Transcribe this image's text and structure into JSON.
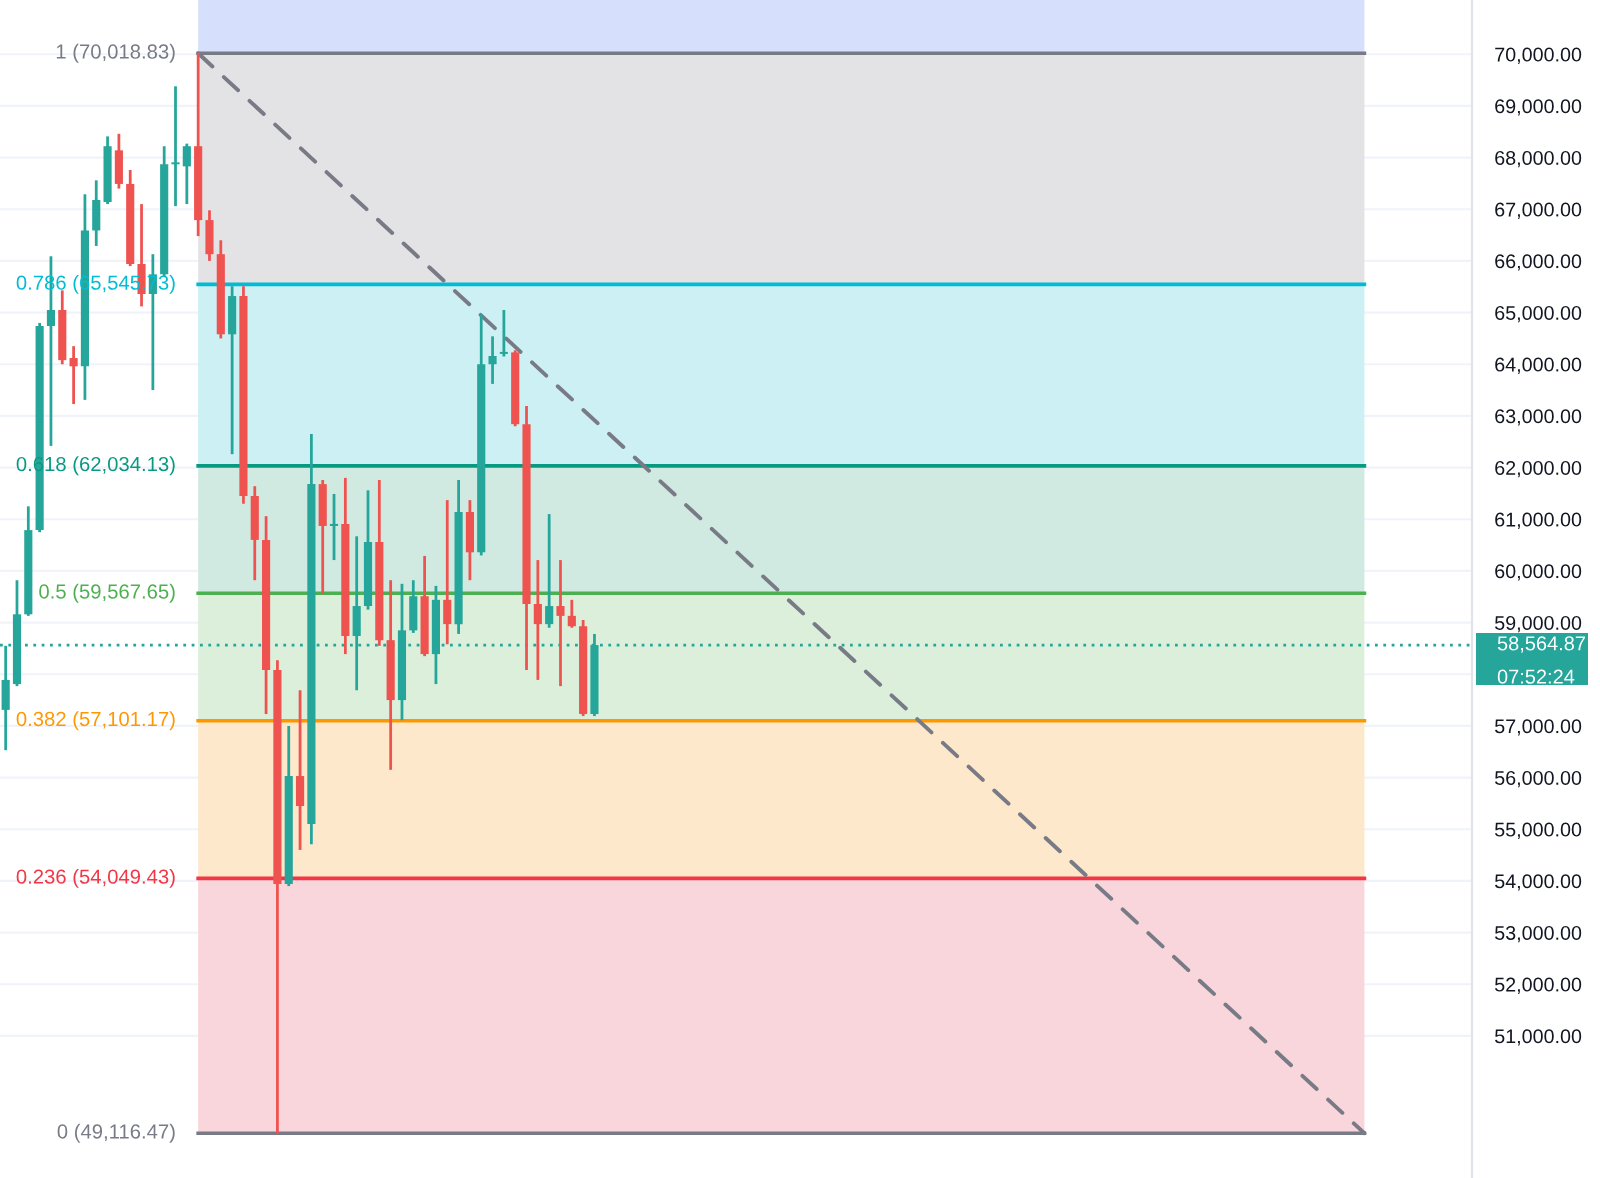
{
  "chart_data": {
    "type": "candlestick",
    "categories": [
      null,
      null,
      null,
      null,
      null,
      null,
      null,
      null,
      null,
      null,
      null,
      null,
      null,
      null,
      null,
      null,
      null,
      null,
      null,
      null,
      null,
      null,
      null,
      null,
      null,
      null,
      null,
      null,
      null,
      null,
      null,
      null,
      null,
      null,
      null,
      null,
      null,
      null,
      null,
      null,
      null,
      null,
      null,
      null,
      null,
      null,
      null,
      null,
      null,
      null,
      null,
      null,
      null,
      null,
      null,
      null,
      null,
      null,
      null,
      null,
      null,
      null,
      null,
      null,
      null,
      null,
      null,
      null,
      null,
      null,
      null,
      null,
      null,
      null,
      null,
      null,
      null,
      null,
      null,
      null,
      null,
      null,
      null,
      null,
      null,
      null,
      null,
      null,
      null,
      null,
      null,
      null,
      null,
      null,
      null,
      null,
      null,
      null,
      null,
      null,
      null,
      null,
      null,
      null,
      null,
      null,
      null,
      null,
      null,
      null,
      null,
      null,
      null,
      null,
      null,
      null,
      null,
      null,
      null,
      null,
      null,
      null,
      null,
      null,
      null,
      null,
      null,
      null,
      null,
      null
    ],
    "ohlc": [
      [
        57310,
        58550,
        56530,
        57890
      ],
      [
        57810,
        59820,
        57770,
        59160
      ],
      [
        59160,
        61250,
        59130,
        60790
      ],
      [
        60790,
        64800,
        60750,
        64740
      ],
      [
        64740,
        66090,
        62420,
        65050
      ],
      [
        65050,
        65430,
        64000,
        64080
      ],
      [
        64120,
        64350,
        63230,
        63960
      ],
      [
        63960,
        67290,
        63310,
        66590
      ],
      [
        66590,
        67560,
        66290,
        67180
      ],
      [
        67140,
        68410,
        67100,
        68220
      ],
      [
        68140,
        68460,
        67400,
        67490
      ],
      [
        67490,
        67760,
        65900,
        65940
      ],
      [
        65940,
        67100,
        65120,
        65360
      ],
      [
        65360,
        66130,
        63500,
        65740
      ],
      [
        65740,
        68220,
        65700,
        67870
      ],
      [
        67870,
        69380,
        67060,
        67900
      ],
      [
        67830,
        68270,
        67100,
        68220
      ],
      [
        68220,
        70018.83,
        66480,
        66790
      ],
      [
        66790,
        66980,
        66000,
        66130
      ],
      [
        66130,
        66400,
        64500,
        64580
      ],
      [
        64580,
        65510,
        62260,
        65320
      ],
      [
        65320,
        65510,
        61300,
        61450
      ],
      [
        61450,
        61640,
        59820,
        60600
      ],
      [
        60600,
        61060,
        57230,
        58080
      ],
      [
        58080,
        58270,
        49116.47,
        53940
      ],
      [
        53940,
        57000,
        53900,
        56030
      ],
      [
        56030,
        57690,
        54600,
        55450
      ],
      [
        55100,
        62650,
        54710,
        61680
      ],
      [
        61680,
        61760,
        59550,
        60870
      ],
      [
        60870,
        61490,
        60210,
        60910
      ],
      [
        60910,
        61800,
        58390,
        58740
      ],
      [
        58740,
        60670,
        57690,
        59320
      ],
      [
        59320,
        61560,
        59250,
        60560
      ],
      [
        60560,
        61760,
        58550,
        58660
      ],
      [
        58660,
        59820,
        56150,
        57500
      ],
      [
        57500,
        59750,
        57110,
        58850
      ],
      [
        58850,
        59820,
        58800,
        59510
      ],
      [
        59510,
        60290,
        58350,
        58390
      ],
      [
        58390,
        59710,
        57810,
        59440
      ],
      [
        59440,
        61370,
        58580,
        58970
      ],
      [
        58970,
        61760,
        58780,
        61140
      ],
      [
        61140,
        61370,
        59820,
        60360
      ],
      [
        60360,
        64970,
        60300,
        64000
      ],
      [
        64000,
        64540,
        63620,
        64160
      ],
      [
        64200,
        65050,
        64150,
        64230
      ],
      [
        64230,
        64270,
        62800,
        62840
      ],
      [
        62840,
        63190,
        58080,
        59360
      ],
      [
        59360,
        60210,
        57890,
        58970
      ],
      [
        58970,
        61100,
        58900,
        59320
      ],
      [
        59320,
        60210,
        57770,
        59130
      ],
      [
        59130,
        59440,
        58900,
        58930
      ],
      [
        58930,
        59050,
        57190,
        57230
      ],
      [
        57230,
        58780,
        57190,
        58564.87
      ],
      null,
      null,
      null,
      null,
      null,
      null,
      null,
      null,
      null,
      null,
      null,
      null,
      null,
      null,
      null,
      null,
      null,
      null,
      null,
      null,
      null,
      null,
      null,
      null,
      null,
      null,
      null,
      null,
      null,
      null,
      null,
      null,
      null,
      null,
      null,
      null,
      null,
      null,
      null,
      null,
      null,
      null,
      null,
      null,
      null,
      null,
      null,
      null,
      null,
      null,
      null,
      null,
      null,
      null,
      null,
      null,
      null,
      null,
      null,
      null,
      null,
      null,
      null,
      null,
      null,
      null,
      null,
      null,
      null,
      null,
      null,
      null,
      null,
      null,
      null,
      null,
      null
    ],
    "colors": [
      "#26a69a",
      "#26a69a",
      "#26a69a",
      "#26a69a",
      "#26a69a",
      "#ef5350",
      "#ef5350",
      "#26a69a",
      "#26a69a",
      "#26a69a",
      "#ef5350",
      "#ef5350",
      "#ef5350",
      "#26a69a",
      "#26a69a",
      "#26a69a",
      "#26a69a",
      "#ef5350",
      "#ef5350",
      "#ef5350",
      "#26a69a",
      "#ef5350",
      "#ef5350",
      "#ef5350",
      "#ef5350",
      "#26a69a",
      "#ef5350",
      "#26a69a",
      "#ef5350",
      "#26a69a",
      "#ef5350",
      "#26a69a",
      "#26a69a",
      "#ef5350",
      "#ef5350",
      "#26a69a",
      "#26a69a",
      "#ef5350",
      "#26a69a",
      "#ef5350",
      "#26a69a",
      "#ef5350",
      "#26a69a",
      "#26a69a",
      "#26a69a",
      "#ef5350",
      "#ef5350",
      "#ef5350",
      "#26a69a",
      "#ef5350",
      "#ef5350",
      "#ef5350",
      "#26a69a",
      null,
      null,
      null,
      null,
      null,
      null,
      null,
      null,
      null,
      null,
      null,
      null,
      null,
      null,
      null,
      null,
      null,
      null,
      null,
      null,
      null,
      null,
      null,
      null,
      null,
      null,
      null,
      null,
      null,
      null,
      null,
      null,
      null,
      null,
      null,
      null,
      null,
      null,
      null,
      null,
      null,
      null,
      null,
      null,
      null,
      null,
      null,
      null,
      null,
      null,
      null,
      null,
      null,
      null,
      null,
      null,
      null,
      null,
      null,
      null,
      null,
      null,
      null,
      null,
      null,
      null,
      null,
      null,
      null,
      null,
      null,
      null,
      null,
      null,
      null,
      null,
      null
    ],
    "series": [
      {
        "type": "line",
        "color": "#787b86",
        "line_style": "dashed",
        "values": [
          null,
          null,
          null,
          null,
          null,
          null,
          null,
          null,
          null,
          null,
          null,
          null,
          null,
          null,
          null,
          null,
          null,
          70018.83,
          null,
          null,
          null,
          null,
          null,
          null,
          null,
          null,
          null,
          null,
          null,
          null,
          null,
          null,
          null,
          null,
          null,
          null,
          null,
          null,
          null,
          null,
          null,
          null,
          null,
          null,
          null,
          null,
          null,
          null,
          null,
          null,
          null,
          null,
          null,
          null,
          null,
          null,
          null,
          null,
          null,
          null,
          null,
          null,
          null,
          null,
          null,
          null,
          null,
          null,
          null,
          null,
          null,
          null,
          null,
          null,
          null,
          null,
          null,
          null,
          null,
          null,
          null,
          null,
          null,
          null,
          null,
          null,
          null,
          null,
          null,
          null,
          null,
          null,
          null,
          null,
          null,
          null,
          null,
          null,
          null,
          null,
          null,
          null,
          null,
          null,
          null,
          null,
          null,
          null,
          null,
          null,
          null,
          null,
          null,
          null,
          null,
          null,
          null,
          null,
          null,
          null,
          49116.47,
          null,
          null,
          null,
          null,
          null,
          null,
          null,
          null,
          null
        ]
      }
    ],
    "ylim": [
      48250,
      71050
    ],
    "yticks": [
      {
        "value": 51000,
        "label": "51,000.00"
      },
      {
        "value": 52000,
        "label": "52,000.00"
      },
      {
        "value": 53000,
        "label": "53,000.00"
      },
      {
        "value": 54000,
        "label": "54,000.00"
      },
      {
        "value": 55000,
        "label": "55,000.00"
      },
      {
        "value": 56000,
        "label": "56,000.00"
      },
      {
        "value": 57000,
        "label": "57,000.00"
      },
      {
        "value": 58000,
        "label": null
      },
      {
        "value": 59000,
        "label": "59,000.00"
      },
      {
        "value": 60000,
        "label": "60,000.00"
      },
      {
        "value": 61000,
        "label": "61,000.00"
      },
      {
        "value": 62000,
        "label": "62,000.00"
      },
      {
        "value": 63000,
        "label": "63,000.00"
      },
      {
        "value": 64000,
        "label": "64,000.00"
      },
      {
        "value": 65000,
        "label": "65,000.00"
      },
      {
        "value": 66000,
        "label": "66,000.00"
      },
      {
        "value": 67000,
        "label": "67,000.00"
      },
      {
        "value": 68000,
        "label": "68,000.00"
      },
      {
        "value": 69000,
        "label": "69,000.00"
      },
      {
        "value": 70000,
        "label": "70,000.00"
      }
    ],
    "bands": [
      {
        "axis": "y",
        "from": 70018.83,
        "to": 71050,
        "color": "#d6e0fc"
      },
      {
        "axis": "y",
        "from": 65545.73,
        "to": 70018.83,
        "color": "#e3e3e5"
      },
      {
        "axis": "y",
        "from": 62034.13,
        "to": 65545.73,
        "color": "#ccf0f3"
      },
      {
        "axis": "y",
        "from": 59567.65,
        "to": 62034.13,
        "color": "#d0eae2"
      },
      {
        "axis": "y",
        "from": 57101.17,
        "to": 59567.65,
        "color": "#dcefdb"
      },
      {
        "axis": "y",
        "from": 54049.43,
        "to": 57101.17,
        "color": "#fde8cb"
      },
      {
        "axis": "y",
        "from": 49116.47,
        "to": 54049.43,
        "color": "#f9d6db"
      }
    ],
    "ref_lines": [
      {
        "axis": "y",
        "value": 70018.83,
        "label": "1 (70,018.83)",
        "color": "#787b86",
        "line_style": "solid"
      },
      {
        "axis": "y",
        "value": 65545.73,
        "label": "0.786 (65,545.73)",
        "color": "#00bcd4",
        "line_style": "solid"
      },
      {
        "axis": "y",
        "value": 62034.13,
        "label": "0.618 (62,034.13)",
        "color": "#089981",
        "line_style": "solid"
      },
      {
        "axis": "y",
        "value": 59567.65,
        "label": "0.5 (59,567.65)",
        "color": "#4caf50",
        "line_style": "solid"
      },
      {
        "axis": "y",
        "value": 57101.17,
        "label": "0.382 (57,101.17)",
        "color": "#ff9800",
        "line_style": "solid"
      },
      {
        "axis": "y",
        "value": 54049.43,
        "label": "0.236 (54,049.43)",
        "color": "#f23645",
        "line_style": "solid"
      },
      {
        "axis": "y",
        "value": 49116.47,
        "label": "0 (49,116.47)",
        "color": "#787b86",
        "line_style": "solid"
      },
      {
        "axis": "y",
        "value": 58564.87,
        "label": "58,564.87",
        "color": "#26a69a",
        "line_style": "dotted"
      }
    ],
    "annotations": [
      "07:52:24"
    ],
    "grid": "y",
    "tick_labels": "y"
  }
}
